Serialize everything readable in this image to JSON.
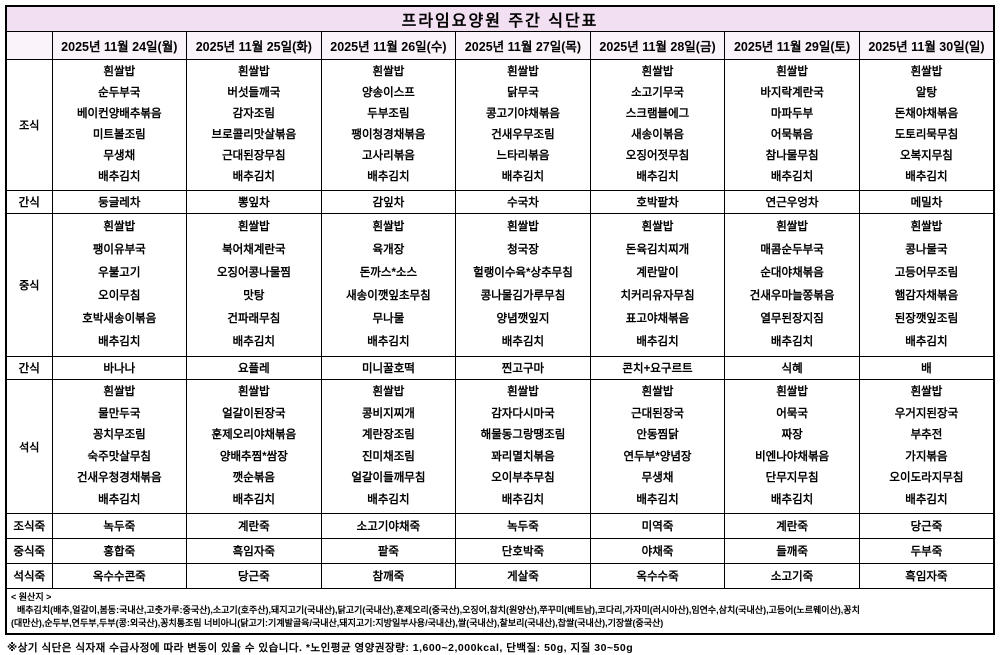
{
  "title": "프라임요양원 주간 식단표",
  "columns": [
    "2025년 11월 24일(월)",
    "2025년 11월 25일(화)",
    "2025년 11월 26일(수)",
    "2025년 11월 27일(목)",
    "2025년 11월 28일(금)",
    "2025년 11월 29일(토)",
    "2025년 11월 30일(일)"
  ],
  "rows": [
    {
      "label": "조식",
      "type": "menu",
      "cells": [
        [
          "흰쌀밥",
          "순두부국",
          "베이컨양배추볶음",
          "미트볼조림",
          "무생채",
          "배추김치"
        ],
        [
          "흰쌀밥",
          "버섯들깨국",
          "감자조림",
          "브로콜리맛살볶음",
          "근대된장무침",
          "배추김치"
        ],
        [
          "흰쌀밥",
          "양송이스프",
          "두부조림",
          "팽이청경채볶음",
          "고사리볶음",
          "배추김치"
        ],
        [
          "흰쌀밥",
          "닭무국",
          "콩고기야채볶음",
          "건새우무조림",
          "느타리볶음",
          "배추김치"
        ],
        [
          "흰쌀밥",
          "소고기무국",
          "스크램블에그",
          "새송이볶음",
          "오징어젓무침",
          "배추김치"
        ],
        [
          "흰쌀밥",
          "바지락계란국",
          "마파두부",
          "어묵볶음",
          "참나물무침",
          "배추김치"
        ],
        [
          "흰쌀밥",
          "알탕",
          "돈채야채볶음",
          "도토리묵무침",
          "오복지무침",
          "배추김치"
        ]
      ]
    },
    {
      "label": "간식",
      "type": "single",
      "cells": [
        "둥글레차",
        "뽕잎차",
        "감잎차",
        "수국차",
        "호박팥차",
        "연근우엉차",
        "메밀차"
      ]
    },
    {
      "label": "중식",
      "type": "menu",
      "cells": [
        [
          "흰쌀밥",
          "팽이유부국",
          "우불고기",
          "오이무침",
          "호박새송이볶음",
          "배추김치"
        ],
        [
          "흰쌀밥",
          "북어채계란국",
          "오징어콩나물찜",
          "맛탕",
          "건파래무침",
          "배추김치"
        ],
        [
          "흰쌀밥",
          "육개장",
          "돈까스*소스",
          "새송이깻잎초무침",
          "무나물",
          "배추김치"
        ],
        [
          "흰쌀밥",
          "청국장",
          "헐랭이수육*상추무침",
          "콩나물김가루무침",
          "양념깻잎지",
          "배추김치"
        ],
        [
          "흰쌀밥",
          "돈육김치찌개",
          "계란말이",
          "치커리유자무침",
          "표고야채볶음",
          "배추김치"
        ],
        [
          "흰쌀밥",
          "매콤순두부국",
          "순대야채볶음",
          "건새우마늘쫑볶음",
          "열무된장지짐",
          "배추김치"
        ],
        [
          "흰쌀밥",
          "콩나물국",
          "고등어무조림",
          "햄감자채볶음",
          "된장깻잎조림",
          "배추김치"
        ]
      ]
    },
    {
      "label": "간식",
      "type": "single",
      "cells": [
        "바나나",
        "요플레",
        "미니꿀호떡",
        "찐고구마",
        "콘치+요구르트",
        "식혜",
        "배"
      ]
    },
    {
      "label": "석식",
      "type": "menu",
      "cells": [
        [
          "흰쌀밥",
          "물만두국",
          "꽁치무조림",
          "숙주맛살무침",
          "건새우청경채볶음",
          "배추김치"
        ],
        [
          "흰쌀밥",
          "얼갈이된장국",
          "훈제오리야채볶음",
          "양배추찜*쌈장",
          "깻순볶음",
          "배추김치"
        ],
        [
          "흰쌀밥",
          "콩비지찌개",
          "계란장조림",
          "진미채조림",
          "얼갈이들깨무침",
          "배추김치"
        ],
        [
          "흰쌀밥",
          "감자다시마국",
          "해물동그랑땡조림",
          "꽈리멸치볶음",
          "오이부추무침",
          "배추김치"
        ],
        [
          "흰쌀밥",
          "근대된장국",
          "안동찜닭",
          "연두부*양념장",
          "무생채",
          "배추김치"
        ],
        [
          "흰쌀밥",
          "어묵국",
          "짜장",
          "비엔나야채볶음",
          "단무지무침",
          "배추김치"
        ],
        [
          "흰쌀밥",
          "우거지된장국",
          "부추전",
          "가지볶음",
          "오이도라지무침",
          "배추김치"
        ]
      ]
    },
    {
      "label": "조식죽",
      "type": "porridge",
      "cells": [
        "녹두죽",
        "계란죽",
        "소고기야채죽",
        "녹두죽",
        "미역죽",
        "계란죽",
        "당근죽"
      ]
    },
    {
      "label": "중식죽",
      "type": "porridge",
      "cells": [
        "홍합죽",
        "흑임자죽",
        "팥죽",
        "단호박죽",
        "야채죽",
        "들깨죽",
        "두부죽"
      ]
    },
    {
      "label": "석식죽",
      "type": "porridge",
      "cells": [
        "옥수수콘죽",
        "당근죽",
        "참깨죽",
        "게살죽",
        "옥수수죽",
        "소고기죽",
        "흑임자죽"
      ]
    }
  ],
  "origin": {
    "heading": "< 원산지 >",
    "lines": [
      "배추김치(배추,얼갈이,봄동:국내산,고춧가루:중국산),소고기(호주산),돼지고기(국내산),닭고기(국내산),훈제오리(중국산),오징어,참치(원양산),쭈꾸미(베트남),코다리,가자미(러시아산),임연수,삼치(국내산),고등어(노르웨이산),꽁치",
      "(대만산),순두부,연두부,두부(콩:외국산),꽁치통조림 너비아니(닭고기:기계발골육/국내산,돼지고기:지방일부사용/국내산),쌀(국내산),찰보리(국내산),찹쌀(국내산),기장쌀(중국산)"
    ]
  },
  "note": "※상기 식단은 식자재 수급사정에 따라 변동이 있을 수 있습니다. *노인평균 영양권장량: 1,600~2,000kcal, 단백질: 50g, 지질 30~50g",
  "colors": {
    "title_bg": "#f2dff1",
    "header_bg": "#faf3f9",
    "border": "#000000",
    "text": "#000000"
  }
}
